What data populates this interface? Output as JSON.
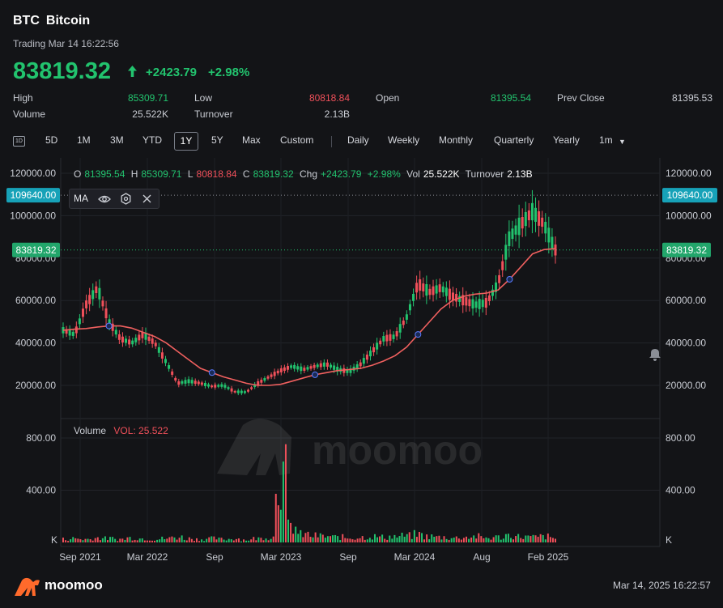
{
  "header": {
    "symbol": "BTC",
    "name": "Bitcoin",
    "trading_status": "Trading Mar 14 16:22:56",
    "price": "83819.32",
    "change": "+2423.79",
    "change_pct": "+2.98%",
    "direction_icon": "arrow-up-icon"
  },
  "stats": {
    "high_label": "High",
    "high": "85309.71",
    "low_label": "Low",
    "low": "80818.84",
    "open_label": "Open",
    "open": "81395.54",
    "prev_close_label": "Prev Close",
    "prev_close": "81395.53",
    "volume_label": "Volume",
    "volume": "25.522K",
    "turnover_label": "Turnover",
    "turnover": "2.13B"
  },
  "toolbar": {
    "periods": [
      "5D",
      "1M",
      "3M",
      "YTD",
      "1Y",
      "5Y",
      "Max",
      "Custom"
    ],
    "active_period": "1Y",
    "intervals": [
      "Daily",
      "Weekly",
      "Monthly",
      "Quarterly",
      "Yearly",
      "1m"
    ],
    "day_icon_label": "1D"
  },
  "legend": {
    "o_label": "O",
    "o": "81395.54",
    "h_label": "H",
    "h": "85309.71",
    "l_label": "L",
    "l": "80818.84",
    "c_label": "C",
    "c": "83819.32",
    "chg_label": "Chg",
    "chg": "+2423.79",
    "chg_pct": "+2.98%",
    "vol_label": "Vol",
    "vol": "25.522K",
    "turnover_label": "Turnover",
    "turnover": "2.13B"
  },
  "ma_panel": {
    "label": "MA",
    "icons": [
      "eye-icon",
      "settings-icon",
      "close-icon"
    ]
  },
  "volume_panel": {
    "label": "Volume",
    "vol_label": "VOL: 25.522"
  },
  "footer": {
    "brand": "moomoo",
    "timestamp": "Mar 14, 2025 16:22:57"
  },
  "colors": {
    "up": "#22c36e",
    "down": "#f0505a",
    "ma": "#f0605f",
    "high_tag": "#17a2b8",
    "last_tag": "#22a66b"
  },
  "chart_data": {
    "type": "line",
    "price_axis": {
      "ticks": [
        "120000.00",
        "100000.00",
        "80000.00",
        "60000.00",
        "40000.00",
        "20000.00"
      ],
      "ylim": [
        0,
        120000
      ]
    },
    "volume_axis": {
      "ticks": [
        "800.00",
        "400.00"
      ],
      "unit_label": "K"
    },
    "x_tick_labels": [
      "Sep 2021",
      "Mar 2022",
      "Sep",
      "Mar 2023",
      "Sep",
      "Mar 2024",
      "Aug",
      "Feb 2025"
    ],
    "high_marker": "109640.00",
    "last_price_marker": "83819.32",
    "watermark": "moomoo",
    "price_series": {
      "name": "Close",
      "x": [
        "2021-08",
        "2021-09",
        "2021-10",
        "2021-11",
        "2021-12",
        "2022-01",
        "2022-02",
        "2022-03",
        "2022-04",
        "2022-05",
        "2022-06",
        "2022-07",
        "2022-08",
        "2022-09",
        "2022-10",
        "2022-11",
        "2022-12",
        "2023-01",
        "2023-02",
        "2023-03",
        "2023-04",
        "2023-05",
        "2023-06",
        "2023-07",
        "2023-08",
        "2023-09",
        "2023-10",
        "2023-11",
        "2023-12",
        "2024-01",
        "2024-02",
        "2024-03",
        "2024-04",
        "2024-05",
        "2024-06",
        "2024-07",
        "2024-08",
        "2024-09",
        "2024-10",
        "2024-11",
        "2024-12",
        "2025-01",
        "2025-02",
        "2025-03"
      ],
      "values": [
        46000,
        44000,
        58000,
        66000,
        50000,
        42000,
        40000,
        44000,
        40000,
        31000,
        21000,
        22000,
        21000,
        19500,
        20000,
        17000,
        16800,
        21000,
        24000,
        27000,
        29000,
        27500,
        29000,
        30000,
        27500,
        26500,
        30000,
        36000,
        42000,
        43000,
        52000,
        68000,
        64000,
        66000,
        62000,
        60000,
        58000,
        59000,
        68000,
        90000,
        96000,
        102000,
        96000,
        83819
      ]
    },
    "ma_series": {
      "name": "MA",
      "values": [
        46000,
        46500,
        46800,
        47500,
        48000,
        48000,
        47000,
        45000,
        43000,
        40000,
        36000,
        32000,
        28000,
        26000,
        24000,
        22500,
        21000,
        20000,
        20000,
        20500,
        22000,
        23500,
        25000,
        26000,
        27000,
        27500,
        28000,
        29500,
        31500,
        34000,
        38000,
        44000,
        50000,
        56000,
        60000,
        62000,
        63000,
        63500,
        65000,
        70000,
        76000,
        82000,
        84000,
        84500
      ]
    },
    "volume_series": {
      "name": "VOL",
      "note_peak_month": "2023-03",
      "values": [
        25,
        30,
        25,
        35,
        30,
        25,
        35,
        30,
        25,
        30,
        40,
        30,
        25,
        30,
        25,
        30,
        20,
        30,
        40,
        780,
        120,
        60,
        50,
        45,
        40,
        35,
        40,
        45,
        40,
        45,
        50,
        60,
        45,
        40,
        35,
        40,
        45,
        35,
        40,
        55,
        45,
        40,
        45,
        30
      ]
    }
  }
}
